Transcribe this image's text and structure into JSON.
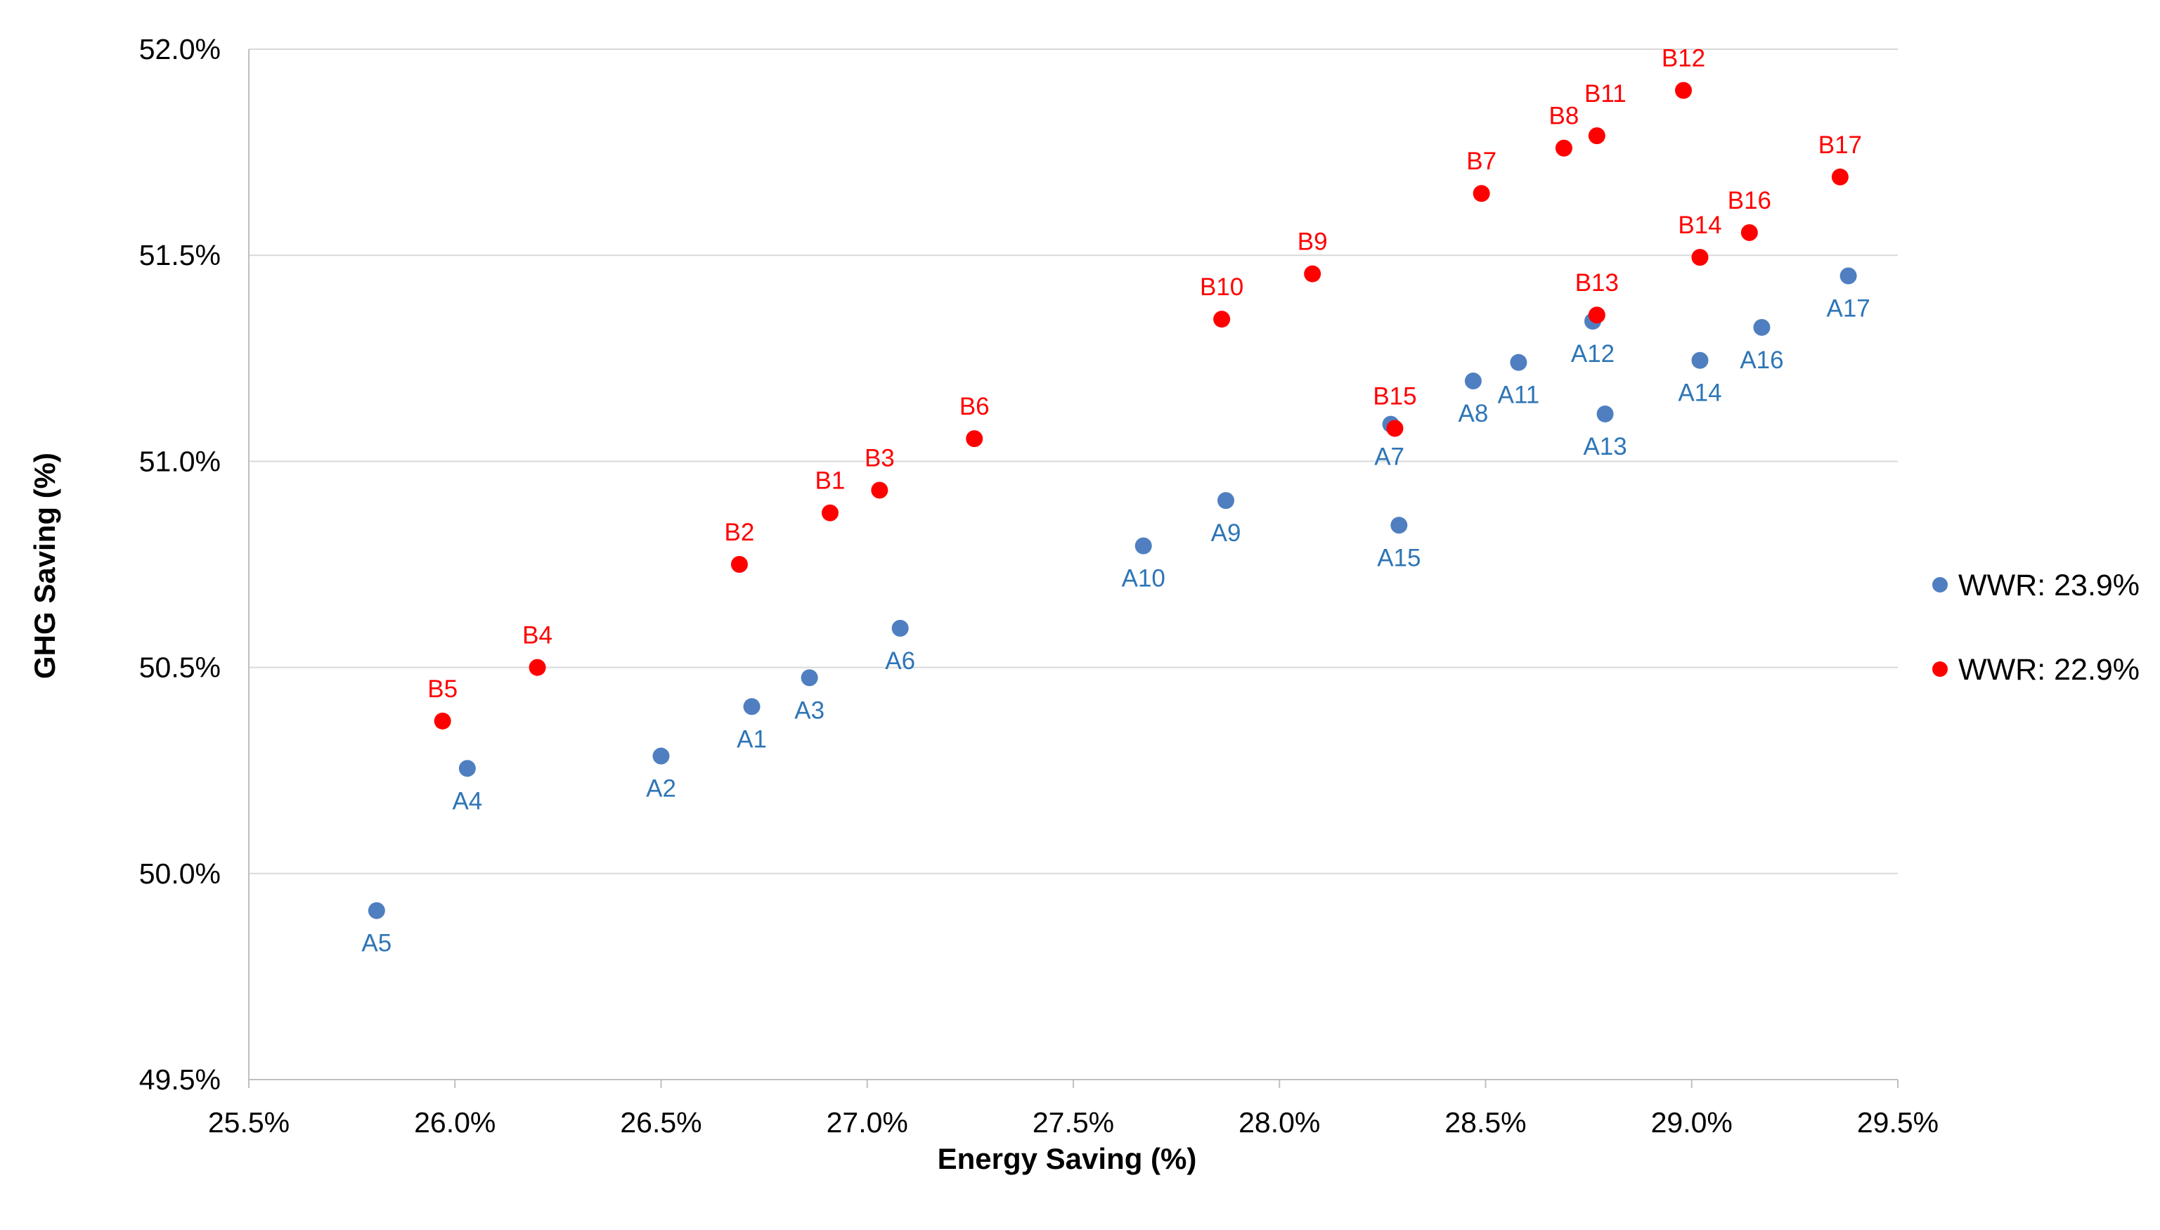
{
  "chart_data": {
    "type": "scatter",
    "xlabel": "Energy Saving (%)",
    "ylabel": "GHG Saving (%)",
    "xlim": [
      25.5,
      29.5
    ],
    "ylim": [
      49.5,
      52.0
    ],
    "x_ticks": [
      "25.5%",
      "26.0%",
      "26.5%",
      "27.0%",
      "27.5%",
      "28.0%",
      "28.5%",
      "29.0%",
      "29.5%"
    ],
    "y_ticks": [
      "49.5%",
      "50.0%",
      "50.5%",
      "51.0%",
      "51.5%",
      "52.0%"
    ],
    "grid": "horizontal",
    "legend_position": "right",
    "series": [
      {
        "name": "WWR: 23.9%",
        "color": "#4f7fc0",
        "label_color": "#2e75b6",
        "points": [
          {
            "label": "A1",
            "x": 26.72,
            "y": 50.405
          },
          {
            "label": "A2",
            "x": 26.5,
            "y": 50.285
          },
          {
            "label": "A3",
            "x": 26.86,
            "y": 50.475
          },
          {
            "label": "A4",
            "x": 26.03,
            "y": 50.255
          },
          {
            "label": "A5",
            "x": 25.81,
            "y": 49.91
          },
          {
            "label": "A6",
            "x": 27.08,
            "y": 50.595
          },
          {
            "label": "A7",
            "x": 28.27,
            "y": 51.09
          },
          {
            "label": "A8",
            "x": 28.47,
            "y": 51.195
          },
          {
            "label": "A9",
            "x": 27.87,
            "y": 50.905
          },
          {
            "label": "A10",
            "x": 27.67,
            "y": 50.795
          },
          {
            "label": "A11",
            "x": 28.58,
            "y": 51.24
          },
          {
            "label": "A12",
            "x": 28.76,
            "y": 51.34
          },
          {
            "label": "A13",
            "x": 28.79,
            "y": 51.115
          },
          {
            "label": "A14",
            "x": 29.02,
            "y": 51.245
          },
          {
            "label": "A15",
            "x": 28.29,
            "y": 50.845
          },
          {
            "label": "A16",
            "x": 29.17,
            "y": 51.325
          },
          {
            "label": "A17",
            "x": 29.38,
            "y": 51.45
          }
        ]
      },
      {
        "name": "WWR: 22.9%",
        "color": "#ff0000",
        "label_color": "#ff0000",
        "points": [
          {
            "label": "B1",
            "x": 26.91,
            "y": 50.875
          },
          {
            "label": "B2",
            "x": 26.69,
            "y": 50.75
          },
          {
            "label": "B3",
            "x": 27.03,
            "y": 50.93
          },
          {
            "label": "B4",
            "x": 26.2,
            "y": 50.5
          },
          {
            "label": "B5",
            "x": 25.97,
            "y": 50.37
          },
          {
            "label": "B6",
            "x": 27.26,
            "y": 51.055
          },
          {
            "label": "B7",
            "x": 28.49,
            "y": 51.65
          },
          {
            "label": "B8",
            "x": 28.69,
            "y": 51.76
          },
          {
            "label": "B9",
            "x": 28.08,
            "y": 51.455
          },
          {
            "label": "B10",
            "x": 27.86,
            "y": 51.345
          },
          {
            "label": "B11",
            "x": 28.77,
            "y": 51.79
          },
          {
            "label": "B12",
            "x": 28.98,
            "y": 51.9
          },
          {
            "label": "B13",
            "x": 28.77,
            "y": 51.355
          },
          {
            "label": "B14",
            "x": 29.02,
            "y": 51.495
          },
          {
            "label": "B15",
            "x": 28.28,
            "y": 51.08
          },
          {
            "label": "B16",
            "x": 29.14,
            "y": 51.555
          },
          {
            "label": "B17",
            "x": 29.36,
            "y": 51.69
          }
        ]
      }
    ]
  }
}
